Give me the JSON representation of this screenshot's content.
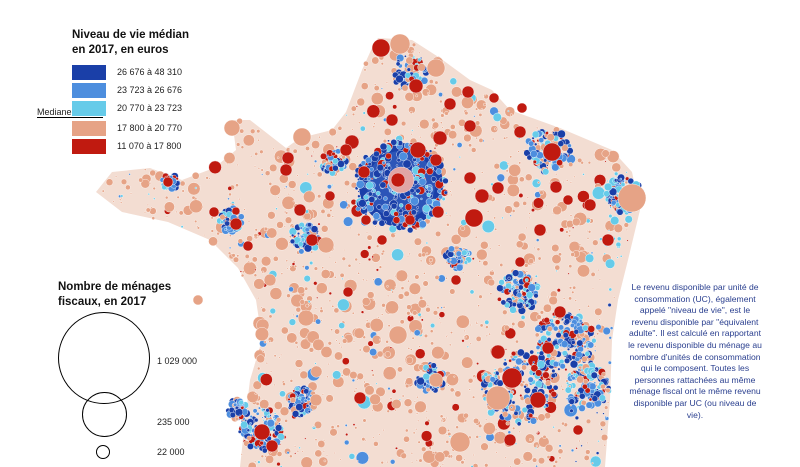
{
  "legend_level": {
    "title_line1": "Niveau de vie médian",
    "title_line2": "en 2017, en euros",
    "median_label": "Mediane",
    "classes": [
      {
        "label": "26 676 à 48 310",
        "color": "#1a3fa8"
      },
      {
        "label": "23 723 à 26 676",
        "color": "#4d8ede"
      },
      {
        "label": "20 770 à 23 723",
        "color": "#66cbe9"
      },
      {
        "label": "17 800 à 20 770",
        "color": "#e6a386"
      },
      {
        "label": "11 070 à 17 800",
        "color": "#c01a10"
      }
    ]
  },
  "legend_size": {
    "title_line1": "Nombre de ménages",
    "title_line2": "fiscaux, en 2017",
    "items": [
      {
        "label": "1 029 000"
      },
      {
        "label": "235 000"
      },
      {
        "label": "22 000"
      }
    ]
  },
  "note": "Le revenu disponible par unité de consommation (UC), également appelé \"niveau de vie\", est le revenu disponible par \"équivalent adulte\". Il est calculé en rapportant le revenu disponible du ménage au nombre d'unités de consommation qui le composent. Toutes les personnes rattachées au même ménage fiscal ont le même revenu disponible par UC (ou niveau de vie).",
  "map": {
    "base_color": "#e6a386",
    "dark_red": "#c01a10"
  }
}
